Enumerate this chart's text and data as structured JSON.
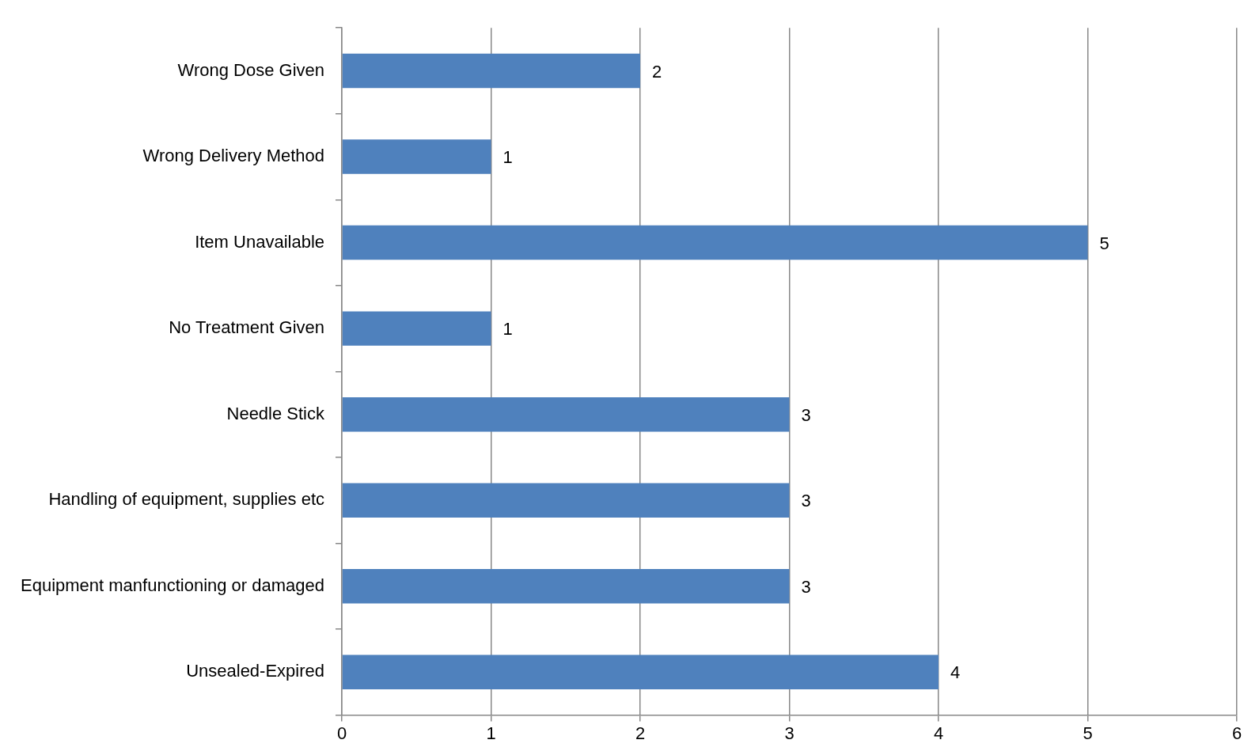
{
  "chart_data": {
    "type": "bar",
    "orientation": "horizontal",
    "categories": [
      "Wrong Dose Given",
      "Wrong Delivery Method",
      "Item Unavailable",
      "No Treatment Given",
      "Needle Stick",
      "Handling of equipment, supplies etc",
      "Equipment manfunctioning or damaged",
      "Unsealed-Expired"
    ],
    "values": [
      2,
      1,
      5,
      1,
      3,
      3,
      3,
      4
    ],
    "color": "#4f81bd",
    "xlim": [
      0,
      6
    ],
    "xticks": [
      0,
      1,
      2,
      3,
      4,
      5,
      6
    ],
    "grid": "x",
    "data_labels": true,
    "legend": false
  }
}
